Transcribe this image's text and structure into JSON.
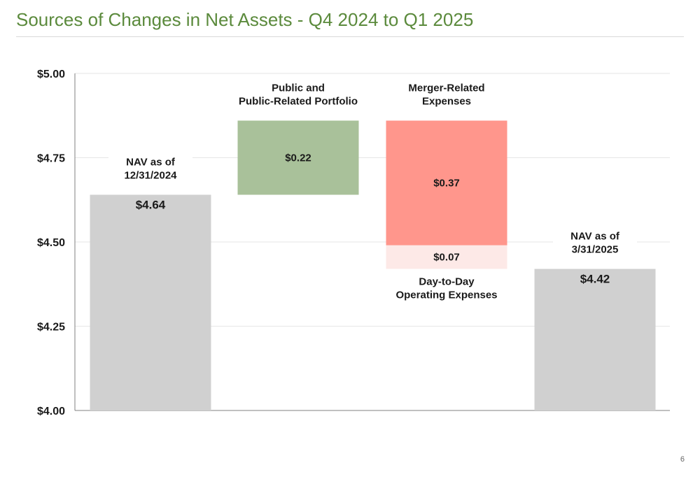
{
  "page": {
    "title": "Sources of Changes in Net Assets - Q4 2024 to Q1 2025",
    "page_number": "6"
  },
  "colors": {
    "title": "#5b8a3c",
    "nav_bar": "#d0d0d0",
    "increase_bar": "#a9c19a",
    "merger_bar": "#ff968c",
    "operating_bar": "#fde9e7",
    "gridline": "#e6e6e6",
    "axis": "#808080",
    "text": "#1a1a1a"
  },
  "chart_data": {
    "type": "bar",
    "subtype": "waterfall",
    "ylim": [
      4.0,
      5.0
    ],
    "yticks": [
      5.0,
      4.75,
      4.5,
      4.25,
      4.0
    ],
    "ytick_labels": [
      "$5.00",
      "$4.75",
      "$4.50",
      "$4.25",
      "$4.00"
    ],
    "grid": true,
    "bars": [
      {
        "id": "nav-start",
        "column": 0,
        "kind": "total",
        "start": 4.0,
        "end": 4.64,
        "value_label": "$4.64",
        "category_label": [
          "NAV as of",
          "12/31/2024"
        ],
        "label_position": "above"
      },
      {
        "id": "public-portfolio",
        "column": 1,
        "kind": "increase",
        "start": 4.64,
        "end": 4.86,
        "value_label": "$0.22",
        "category_label": [
          "Public and",
          "Public-Related Portfolio"
        ],
        "label_position": "above"
      },
      {
        "id": "merger-expenses",
        "column": 2,
        "kind": "merger",
        "start": 4.86,
        "end": 4.49,
        "value_label": "$0.37",
        "category_label": [
          "Merger-Related",
          "Expenses"
        ],
        "label_position": "above"
      },
      {
        "id": "operating-expenses",
        "column": 2,
        "kind": "operating",
        "start": 4.49,
        "end": 4.42,
        "value_label": "$0.07",
        "category_label": [
          "Day-to-Day",
          "Operating Expenses"
        ],
        "label_position": "below"
      },
      {
        "id": "nav-end",
        "column": 3,
        "kind": "total",
        "start": 4.0,
        "end": 4.42,
        "value_label": "$4.42",
        "category_label": [
          "NAV as of",
          "3/31/2025"
        ],
        "label_position": "above"
      }
    ]
  }
}
